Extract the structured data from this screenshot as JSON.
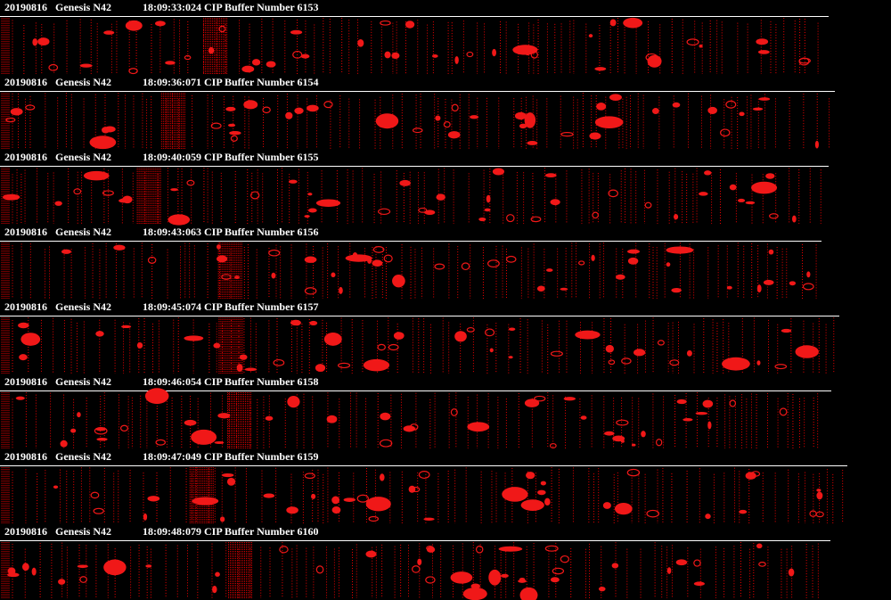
{
  "strips": [
    {
      "date": "20190816",
      "flight": "Genesis N42",
      "buffer": "18:09:33:024 CIP Buffer Number 6153"
    },
    {
      "date": "20190816",
      "flight": "Genesis N42",
      "buffer": "18:09:36:071 CIP Buffer Number 6154"
    },
    {
      "date": "20190816",
      "flight": "Genesis N42",
      "buffer": "18:09:40:059 CIP Buffer Number 6155"
    },
    {
      "date": "20190816",
      "flight": "Genesis N42",
      "buffer": "18:09:43:063 CIP Buffer Number 6156"
    },
    {
      "date": "20190816",
      "flight": "Genesis N42",
      "buffer": "18:09:45:074 CIP Buffer Number 6157"
    },
    {
      "date": "20190816",
      "flight": "Genesis N42",
      "buffer": "18:09:46:054 CIP Buffer Number 6158"
    },
    {
      "date": "20190816",
      "flight": "Genesis N42",
      "buffer": "18:09:47:049 CIP Buffer Number 6159"
    },
    {
      "date": "20190816",
      "flight": "Genesis N42",
      "buffer": "18:09:48:079 CIP Buffer Number 6160"
    }
  ]
}
